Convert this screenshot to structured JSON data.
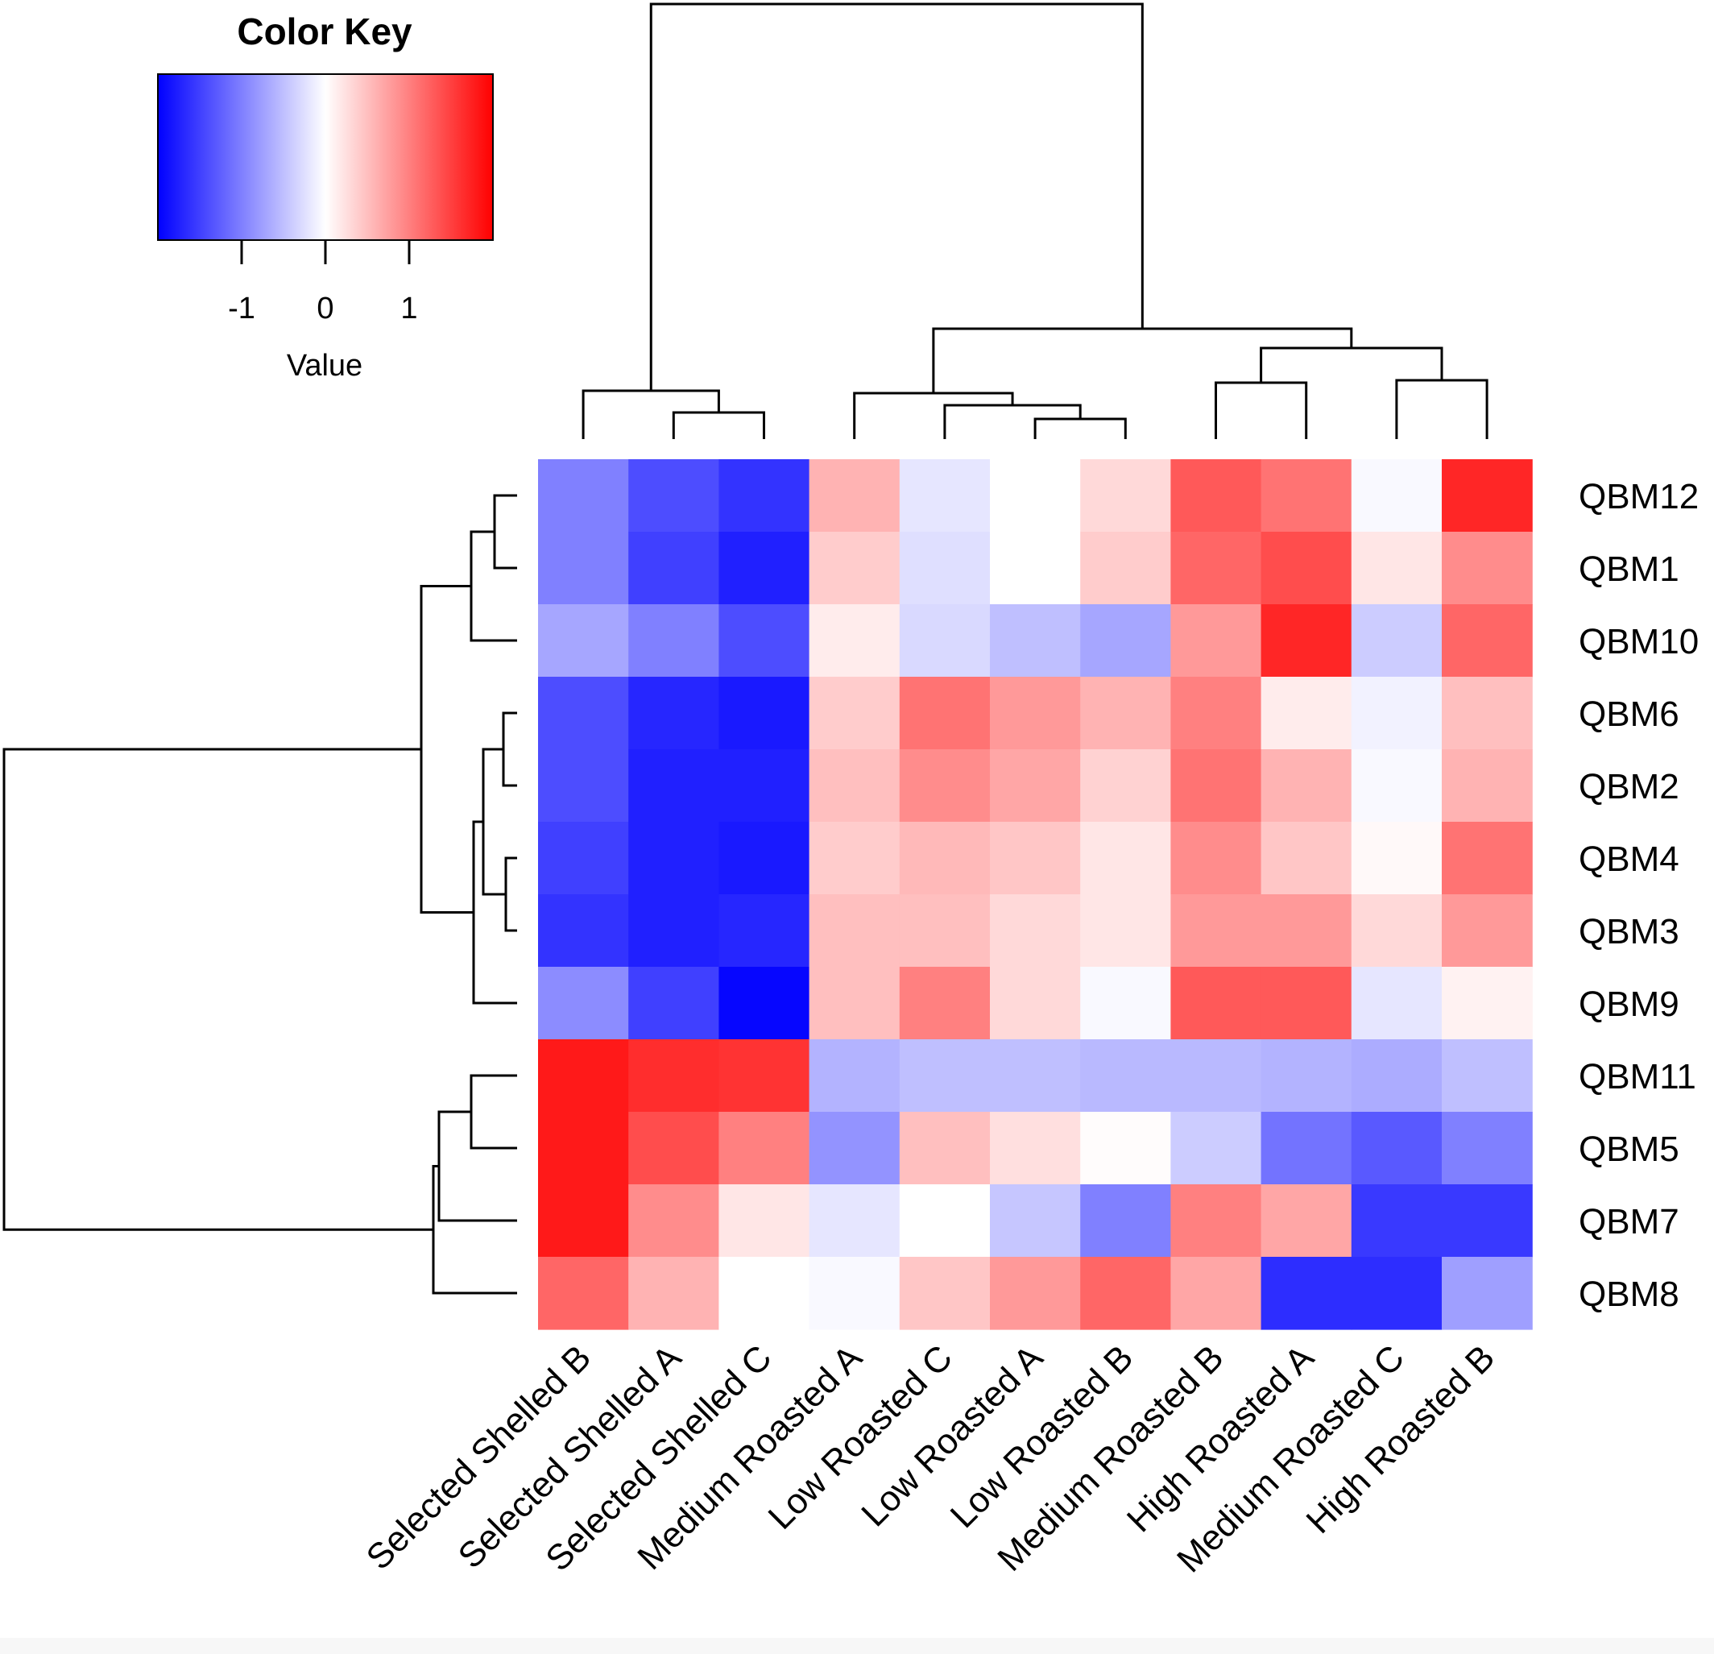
{
  "chart_data": {
    "type": "heatmap",
    "color_key": {
      "title": "Color Key",
      "xlabel": "Value",
      "ticks": [
        -1,
        0,
        1
      ],
      "range": [
        -2,
        2
      ],
      "low_color": "#0000ff",
      "mid_color": "#ffffff",
      "high_color": "#ff0000"
    },
    "columns": [
      "Selected Shelled B",
      "Selected Shelled A",
      "Selected Shelled C",
      "Medium Roasted A",
      "Low Roasted C",
      "Low Roasted A",
      "Low Roasted B",
      "Medium Roasted B",
      "High Roasted A",
      "Medium Roasted C",
      "High Roasted B"
    ],
    "rows": [
      "QBM12",
      "QBM1",
      "QBM10",
      "QBM6",
      "QBM2",
      "QBM4",
      "QBM3",
      "QBM9",
      "QBM11",
      "QBM5",
      "QBM7",
      "QBM8"
    ],
    "values": [
      [
        -1.0,
        -1.4,
        -1.6,
        0.6,
        -0.2,
        0.0,
        0.3,
        1.3,
        1.1,
        -0.05,
        1.7
      ],
      [
        -1.0,
        -1.5,
        -1.75,
        0.4,
        -0.25,
        0.0,
        0.4,
        1.2,
        1.4,
        0.2,
        0.9
      ],
      [
        -0.7,
        -1.0,
        -1.4,
        0.15,
        -0.3,
        -0.5,
        -0.7,
        0.8,
        1.7,
        -0.4,
        1.2
      ],
      [
        -1.4,
        -1.7,
        -1.8,
        0.4,
        1.1,
        0.8,
        0.6,
        1.0,
        0.15,
        -0.1,
        0.5
      ],
      [
        -1.4,
        -1.75,
        -1.75,
        0.5,
        0.9,
        0.7,
        0.35,
        1.1,
        0.6,
        -0.05,
        0.6
      ],
      [
        -1.5,
        -1.75,
        -1.8,
        0.4,
        0.55,
        0.45,
        0.2,
        0.9,
        0.45,
        0.05,
        1.1
      ],
      [
        -1.6,
        -1.75,
        -1.7,
        0.5,
        0.5,
        0.3,
        0.2,
        0.8,
        0.8,
        0.3,
        0.8
      ],
      [
        -0.9,
        -1.5,
        -1.95,
        0.5,
        1.0,
        0.3,
        -0.05,
        1.3,
        1.3,
        -0.2,
        0.1
      ],
      [
        1.8,
        1.65,
        1.6,
        -0.6,
        -0.5,
        -0.5,
        -0.55,
        -0.55,
        -0.6,
        -0.65,
        -0.5
      ],
      [
        1.8,
        1.4,
        1.0,
        -0.85,
        0.5,
        0.25,
        0.02,
        -0.4,
        -1.1,
        -1.3,
        -1.0
      ],
      [
        1.8,
        0.9,
        0.2,
        -0.2,
        0.0,
        -0.45,
        -1.0,
        1.0,
        0.7,
        -1.55,
        -1.55
      ],
      [
        1.2,
        0.6,
        0.0,
        -0.05,
        0.45,
        0.8,
        1.2,
        0.7,
        -1.65,
        -1.65,
        -0.75
      ]
    ],
    "grid": false
  }
}
